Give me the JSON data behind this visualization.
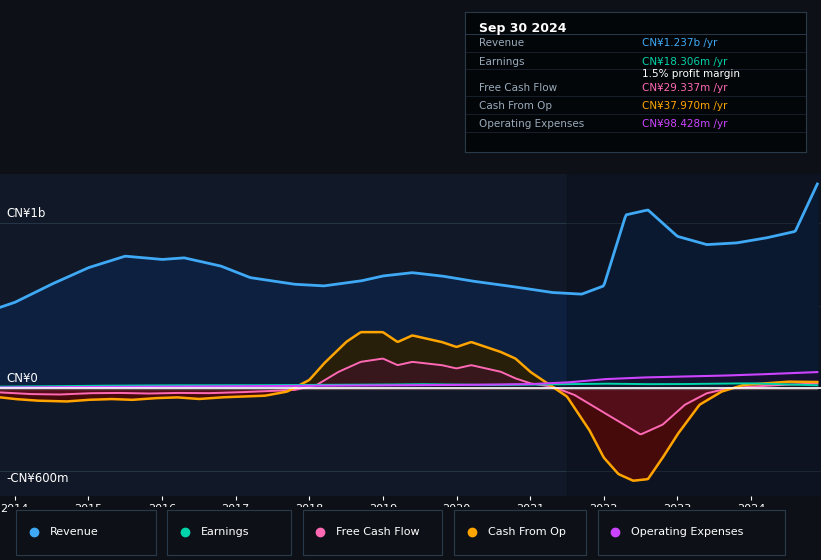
{
  "bg_color": "#0d1117",
  "plot_bg_color": "#111827",
  "revenue_color": "#3fa9f5",
  "earnings_color": "#00d4aa",
  "free_cash_flow_color": "#ff69b4",
  "cash_from_op_color": "#ffa500",
  "operating_expenses_color": "#cc44ff",
  "legend_items": [
    {
      "label": "Revenue",
      "color": "#3fa9f5"
    },
    {
      "label": "Earnings",
      "color": "#00d4aa"
    },
    {
      "label": "Free Cash Flow",
      "color": "#ff69b4"
    },
    {
      "label": "Cash From Op",
      "color": "#ffa500"
    },
    {
      "label": "Operating Expenses",
      "color": "#cc44ff"
    }
  ],
  "info_title": "Sep 30 2024",
  "info_rows": [
    {
      "label": "Revenue",
      "value": "CN¥1.237b /yr",
      "color": "#3fa9f5"
    },
    {
      "label": "Earnings",
      "value": "CN¥18.306m /yr",
      "color": "#00d4aa"
    },
    {
      "label": "profit_margin",
      "value": "1.5% profit margin",
      "color": "#ffffff"
    },
    {
      "label": "Free Cash Flow",
      "value": "CN¥29.337m /yr",
      "color": "#ff69b4"
    },
    {
      "label": "Cash From Op",
      "value": "CN¥37.970m /yr",
      "color": "#ffa500"
    },
    {
      "label": "Operating Expenses",
      "value": "CN¥98.428m /yr",
      "color": "#cc44ff"
    }
  ],
  "ylabel_top": "CN¥1b",
  "ylabel_zero": "CN¥0",
  "ylabel_bottom": "-CN¥600m"
}
